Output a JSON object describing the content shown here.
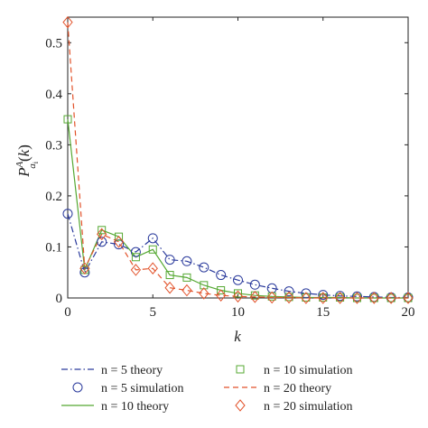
{
  "chart_data": {
    "type": "line",
    "title": "",
    "xlabel": "k",
    "ylabel": "P^A_{a_i}(k)",
    "xlim": [
      0,
      20
    ],
    "ylim": [
      0,
      0.55
    ],
    "xticks": [
      0,
      5,
      10,
      15,
      20
    ],
    "yticks": [
      0,
      0.1,
      0.2,
      0.3,
      0.4,
      0.5
    ],
    "x": [
      0,
      1,
      2,
      3,
      4,
      5,
      6,
      7,
      8,
      9,
      10,
      11,
      12,
      13,
      14,
      15,
      16,
      17,
      18,
      19,
      20
    ],
    "grid": false,
    "legend_position": "below",
    "series": [
      {
        "name": "n = 5 theory",
        "style": "dash-dot",
        "marker": "none",
        "color": "#2a3a9c",
        "values": [
          0.165,
          0.05,
          0.11,
          0.105,
          0.09,
          0.117,
          0.075,
          0.072,
          0.06,
          0.045,
          0.035,
          0.026,
          0.019,
          0.013,
          0.009,
          0.006,
          0.004,
          0.003,
          0.002,
          0.001,
          0.001
        ]
      },
      {
        "name": "n = 5 simulation",
        "style": "none",
        "marker": "circle",
        "color": "#2a3a9c",
        "values": [
          0.165,
          0.05,
          0.11,
          0.105,
          0.09,
          0.117,
          0.075,
          0.072,
          0.06,
          0.045,
          0.035,
          0.026,
          0.019,
          0.013,
          0.009,
          0.006,
          0.004,
          0.003,
          0.002,
          0.001,
          0.001
        ]
      },
      {
        "name": "n = 10 theory",
        "style": "solid",
        "marker": "none",
        "color": "#55a832",
        "values": [
          0.35,
          0.055,
          0.133,
          0.12,
          0.08,
          0.095,
          0.045,
          0.04,
          0.025,
          0.015,
          0.009,
          0.005,
          0.003,
          0.002,
          0.001,
          0.001,
          0.001,
          0,
          0,
          0,
          0
        ]
      },
      {
        "name": "n = 10 simulation",
        "style": "none",
        "marker": "square",
        "color": "#55a832",
        "values": [
          0.35,
          0.055,
          0.133,
          0.12,
          0.08,
          0.095,
          0.045,
          0.04,
          0.025,
          0.015,
          0.009,
          0.005,
          0.003,
          0.002,
          0.001,
          0.001,
          0.001,
          0,
          0,
          0,
          0
        ]
      },
      {
        "name": "n = 20 theory",
        "style": "dashed",
        "marker": "none",
        "color": "#e2522a",
        "values": [
          0.54,
          0.058,
          0.125,
          0.11,
          0.055,
          0.058,
          0.02,
          0.015,
          0.009,
          0.005,
          0.003,
          0.002,
          0.001,
          0.001,
          0,
          0,
          0,
          0,
          0,
          0,
          0
        ]
      },
      {
        "name": "n = 20 simulation",
        "style": "none",
        "marker": "diamond",
        "color": "#e2522a",
        "values": [
          0.54,
          0.058,
          0.125,
          0.11,
          0.055,
          0.058,
          0.02,
          0.015,
          0.009,
          0.005,
          0.003,
          0.002,
          0.001,
          0.001,
          0,
          0,
          0,
          0,
          0,
          0,
          0
        ]
      }
    ]
  }
}
